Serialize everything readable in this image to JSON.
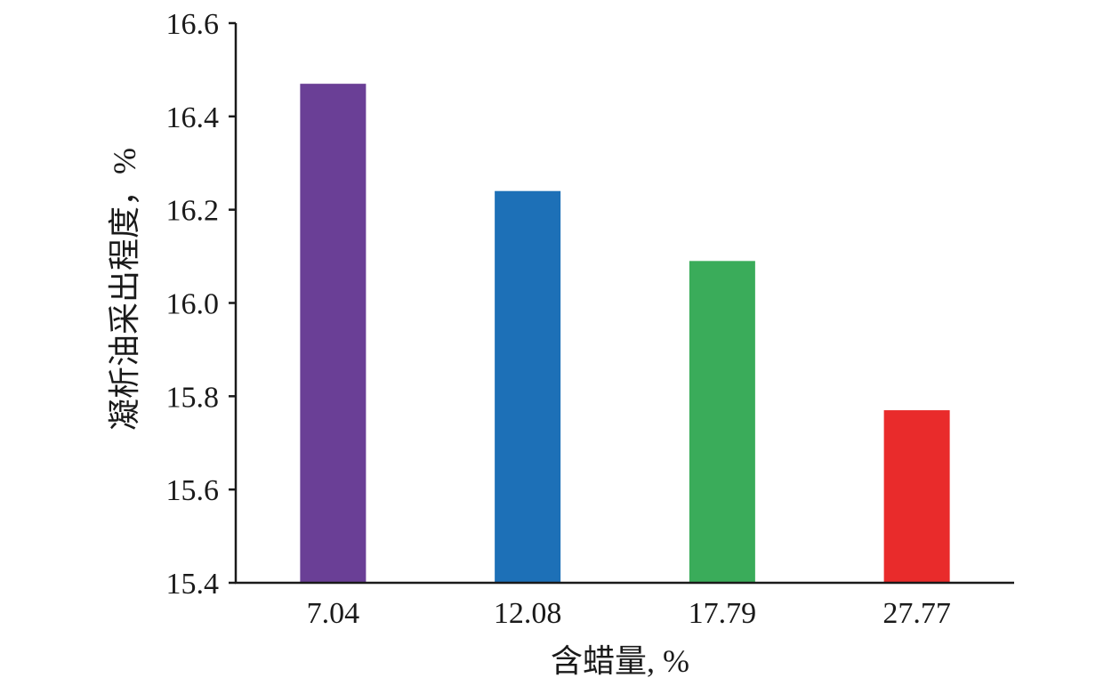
{
  "chart_data": {
    "type": "bar",
    "title": "",
    "xlabel": "含蜡量, %",
    "ylabel": "凝析油采出程度，%",
    "categories": [
      "7.04",
      "12.08",
      "17.79",
      "27.77"
    ],
    "values": [
      16.47,
      16.24,
      16.09,
      15.77
    ],
    "colors": [
      "#6a3f96",
      "#1d70b7",
      "#3aac5a",
      "#e92b2b"
    ],
    "ylim": [
      15.4,
      16.6
    ],
    "yticks": [
      "15.4",
      "15.6",
      "15.8",
      "16.0",
      "16.2",
      "16.4",
      "16.6"
    ],
    "grid": false,
    "legend": "none"
  }
}
